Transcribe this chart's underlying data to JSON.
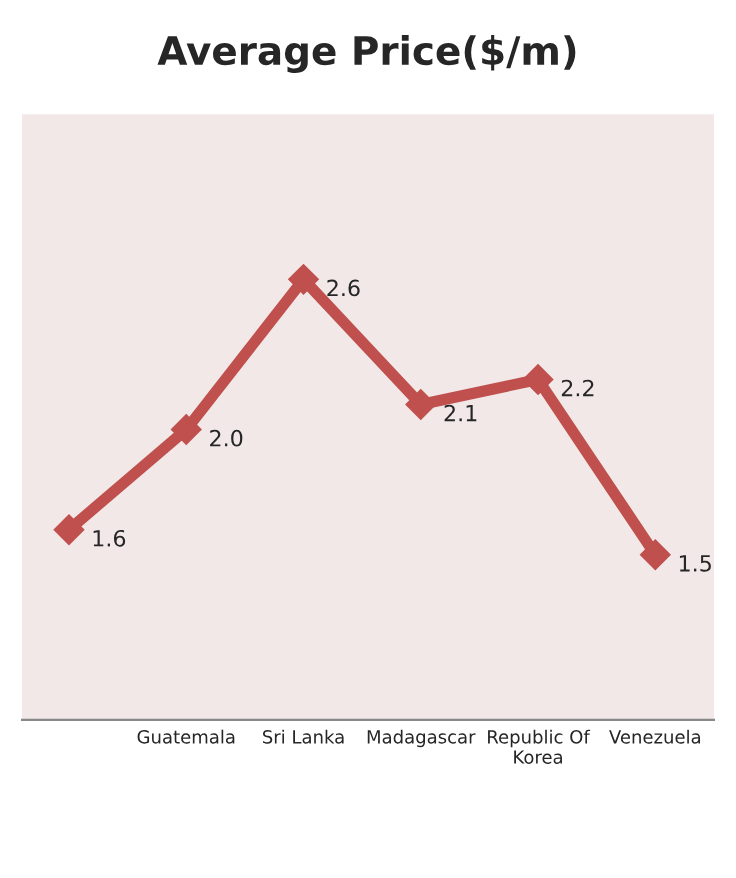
{
  "chart_data": {
    "type": "line",
    "title": "Average Price($/m)",
    "categories": [
      null,
      "Guatemala",
      "Sri Lanka",
      "Madagascar",
      "Republic Of\nKorea",
      "Venezuela"
    ],
    "series": [
      {
        "color": "#c0504d",
        "values": [
          1.6,
          2.0,
          2.6,
          2.1,
          2.2,
          1.5
        ],
        "value_labels": [
          "1.6",
          "2.0",
          "2.6",
          "2.1",
          "2.2",
          "1.5"
        ]
      }
    ],
    "tick_labels": "x",
    "marker": "diamond",
    "line_style": "solid",
    "grid": false,
    "legend": false
  }
}
